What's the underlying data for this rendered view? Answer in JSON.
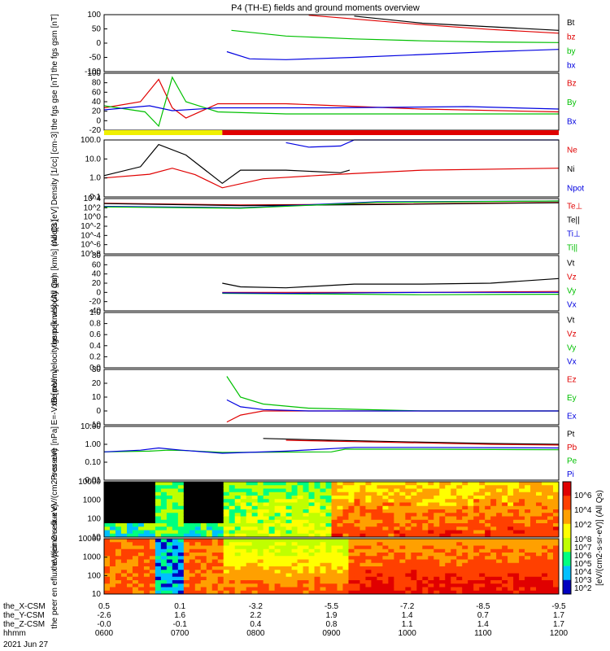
{
  "title": "P4 (TH-E) fields and ground moments overview",
  "colors": {
    "black": "#000000",
    "red": "#e00000",
    "green": "#00c000",
    "blue": "#0000e0",
    "yellow": "#f0f000"
  },
  "chart_data": [
    {
      "panel": "fgs_gsm",
      "type": "line",
      "ylabel": "the fgs gsm [nT]",
      "ylim": [
        -100,
        100
      ],
      "yticks": [
        "100",
        "50",
        "0",
        "-50",
        "-100"
      ],
      "legend": [
        "Bt",
        "bz",
        "by",
        "bx"
      ],
      "series": [
        {
          "name": "Bt",
          "x": [
            0,
            0.35,
            0.44,
            0.55,
            0.7,
            1.0
          ],
          "values": [
            null,
            null,
            null,
            95,
            70,
            45
          ]
        },
        {
          "name": "bz",
          "x": [
            0.35,
            0.45,
            0.55,
            0.7,
            0.85,
            1.0
          ],
          "values": [
            null,
            98,
            85,
            65,
            48,
            35
          ]
        },
        {
          "name": "by",
          "x": [
            0.28,
            0.4,
            0.55,
            0.7,
            0.85,
            1.0
          ],
          "values": [
            45,
            25,
            15,
            8,
            4,
            2
          ]
        },
        {
          "name": "bx",
          "x": [
            0.27,
            0.32,
            0.4,
            0.55,
            0.7,
            0.85,
            1.0
          ],
          "values": [
            -30,
            -55,
            -58,
            -50,
            -40,
            -30,
            -22
          ]
        }
      ]
    },
    {
      "panel": "fgs_gse",
      "type": "line",
      "ylabel": "the fgs gse [nT]",
      "ylim": [
        -40,
        100
      ],
      "yticks": [
        "100",
        "80",
        "60",
        "40",
        "20",
        "0",
        "-20"
      ],
      "legend": [
        "Bz",
        "By",
        "Bx"
      ],
      "series": [
        {
          "name": "Bz",
          "x": [
            0,
            0.08,
            0.12,
            0.15,
            0.18,
            0.25,
            0.4,
            0.7,
            1.0
          ],
          "values": [
            15,
            30,
            85,
            15,
            -10,
            25,
            25,
            12,
            5
          ]
        },
        {
          "name": "By",
          "x": [
            0,
            0.09,
            0.12,
            0.15,
            0.18,
            0.25,
            0.4,
            0.7,
            1.0
          ],
          "values": [
            20,
            5,
            -30,
            90,
            30,
            5,
            0,
            0,
            0
          ]
        },
        {
          "name": "Bx",
          "x": [
            0,
            0.1,
            0.15,
            0.25,
            0.5,
            0.8,
            1.0
          ],
          "values": [
            10,
            20,
            8,
            15,
            15,
            18,
            12
          ]
        }
      ]
    },
    {
      "panel": "mode_bar",
      "type": "bar",
      "segments": [
        {
          "x": [
            0,
            0.26
          ],
          "color": "#f0f000"
        },
        {
          "x": [
            0.26,
            1.0
          ],
          "color": "#e00000"
        }
      ]
    },
    {
      "panel": "density",
      "type": "line",
      "ylabel": "Density [1/cc] [cm-3]",
      "ylim": [
        0.05,
        300
      ],
      "scale": "log",
      "yticks": [
        "100.0",
        "10.0",
        "1.0",
        "0.1"
      ],
      "legend": [
        "Ne",
        "Ni",
        "Npot"
      ],
      "series": [
        {
          "name": "Ne",
          "x": [
            0,
            0.1,
            0.15,
            0.2,
            0.26,
            0.35,
            0.5,
            0.7,
            1.0
          ],
          "values": [
            0.9,
            1.6,
            4,
            1.5,
            0.2,
            0.8,
            1.5,
            3,
            4
          ]
        },
        {
          "name": "Ni",
          "x": [
            0,
            0.08,
            0.12,
            0.18,
            0.26,
            0.3,
            0.4,
            0.52,
            0.54
          ],
          "values": [
            1.3,
            5,
            150,
            30,
            0.4,
            3,
            3,
            2,
            3
          ]
        },
        {
          "name": "Npot",
          "x": [
            0.4,
            0.45,
            0.52,
            0.55,
            0.7,
            1.0
          ],
          "values": [
            200,
            100,
            120,
            300,
            300,
            300
          ]
        }
      ]
    },
    {
      "panel": "temps",
      "type": "line",
      "ylabel": "moqt3 [eV]",
      "scale": "log",
      "yticks": [
        "10^4",
        "10^2",
        "10^0",
        "10^-2",
        "10^-4",
        "10^-6",
        "10^-8"
      ],
      "legend": [
        "Te⊥",
        "Te||",
        "Ti⊥",
        "Ti||"
      ],
      "series": [
        {
          "name": "Te⊥",
          "x": [
            0,
            0.3,
            0.6,
            1.0
          ],
          "values": [
            1000,
            400,
            600,
            1500
          ]
        },
        {
          "name": "Te||",
          "x": [
            0,
            0.3,
            0.6,
            1.0
          ],
          "values": [
            800,
            300,
            500,
            1200
          ]
        },
        {
          "name": "Ti⊥",
          "x": [
            0,
            0.3,
            0.6,
            1.0
          ],
          "values": [
            200,
            100,
            2000,
            3000
          ]
        },
        {
          "name": "Ti||",
          "x": [
            0,
            0.3,
            0.6,
            1.0
          ],
          "values": [
            150,
            80,
            1500,
            3000
          ]
        }
      ]
    },
    {
      "panel": "peir_velocity",
      "type": "line",
      "ylabel": "the peir velocity gsm [km/s] (All Qs)",
      "ylim": [
        -40,
        80
      ],
      "yticks": [
        "80",
        "60",
        "40",
        "20",
        "0",
        "-20",
        "-40"
      ],
      "legend": [
        "Vt",
        "Vz",
        "Vy",
        "Vx"
      ],
      "series": [
        {
          "name": "Vt",
          "x": [
            0.26,
            0.3,
            0.4,
            0.55,
            0.7,
            0.85,
            1.0
          ],
          "values": [
            20,
            12,
            10,
            18,
            18,
            20,
            30
          ]
        },
        {
          "name": "Vz",
          "x": [
            0.26,
            0.4,
            0.7,
            1.0
          ],
          "values": [
            0,
            0,
            0,
            2
          ]
        },
        {
          "name": "Vy",
          "x": [
            0.26,
            0.4,
            0.7,
            1.0
          ],
          "values": [
            -2,
            -3,
            -5,
            -4
          ]
        },
        {
          "name": "Vx",
          "x": [
            0.26,
            0.4,
            0.7,
            1.0
          ],
          "values": [
            -1,
            -2,
            0,
            0
          ]
        }
      ]
    },
    {
      "panel": "peer_velocity",
      "type": "line",
      "ylabel": "the peer velocity gsm [km/s] (All Qs)",
      "ylim": [
        0,
        1
      ],
      "yticks": [
        "1.0",
        "0.8",
        "0.6",
        "0.4",
        "0.2",
        "0.0"
      ],
      "legend": [
        "Vt",
        "Vz",
        "Vy",
        "Vx"
      ],
      "series": []
    },
    {
      "panel": "efield",
      "type": "line",
      "ylabel": "E=-VxB [mV/m]",
      "ylim": [
        -10,
        30
      ],
      "yticks": [
        "30",
        "20",
        "10",
        "0",
        "-10"
      ],
      "legend": [
        "Ez",
        "Ey",
        "Ex"
      ],
      "series": [
        {
          "name": "Ez",
          "x": [
            0.27,
            0.3,
            0.35,
            0.45,
            0.7,
            1.0
          ],
          "values": [
            -8,
            -3,
            0,
            0,
            0,
            0
          ]
        },
        {
          "name": "Ey",
          "x": [
            0.27,
            0.3,
            0.35,
            0.45,
            0.7,
            1.0
          ],
          "values": [
            25,
            10,
            5,
            2,
            0,
            0
          ]
        },
        {
          "name": "Ex",
          "x": [
            0.27,
            0.3,
            0.35,
            0.45,
            0.7,
            1.0
          ],
          "values": [
            8,
            3,
            1,
            0,
            0,
            0
          ]
        }
      ]
    },
    {
      "panel": "pressure",
      "type": "line",
      "ylabel": "Pressure [nPa]",
      "scale": "log",
      "yticks": [
        "10.00",
        "1.00",
        "0.10",
        "0.01"
      ],
      "legend": [
        "Pt",
        "Pb",
        "Pe",
        "Pi"
      ],
      "series": [
        {
          "name": "Pt",
          "x": [
            0.35,
            0.5,
            0.7,
            0.85,
            1.0
          ],
          "values": [
            20,
            8,
            3,
            1.5,
            1
          ]
        },
        {
          "name": "Pb",
          "x": [
            0.4,
            0.55,
            0.7,
            0.85,
            1.0
          ],
          "values": [
            8,
            4,
            2,
            1,
            0.7
          ]
        },
        {
          "name": "Pe",
          "x": [
            0,
            0.1,
            0.14,
            0.18,
            0.26,
            0.5,
            0.53,
            0.7,
            1.0
          ],
          "values": [
            0.02,
            0.03,
            0.05,
            0.04,
            0.015,
            0.02,
            0.08,
            0.08,
            0.06
          ]
        },
        {
          "name": "Pi",
          "x": [
            0,
            0.08,
            0.12,
            0.17,
            0.26,
            0.4,
            0.55,
            0.7,
            1.0
          ],
          "values": [
            0.02,
            0.05,
            0.15,
            0.05,
            0.01,
            0.03,
            0.2,
            0.2,
            0.15
          ]
        }
      ]
    },
    {
      "panel": "peir_spectrogram",
      "type": "heatmap",
      "ylabel": "the peir en eflux eV/(cm2-s-sr-eV)",
      "yticks": [
        "10000",
        "1000",
        "100",
        "10"
      ]
    },
    {
      "panel": "peer_spectrogram",
      "type": "heatmap",
      "ylabel": "the peer en eflux eV/(cm2-s-sr-eV)",
      "yticks": [
        "10000",
        "1000",
        "100",
        "10"
      ]
    },
    {
      "panel": "colorbar",
      "type": "colorbar",
      "label": "[eV/(cm2-s-sr-eV)] (All Qs)",
      "ticks_upper": [
        "10^6",
        "10^4",
        "10^2"
      ],
      "ticks_lower": [
        "10^8",
        "10^7",
        "10^6",
        "10^5",
        "10^4",
        "10^3",
        "10^2"
      ]
    }
  ],
  "axis": {
    "rows": [
      {
        "label": "the_X-CSM",
        "values": [
          "0.5",
          "0.1",
          "-3.2",
          "-5.5",
          "-7.2",
          "-8.5",
          "-9.5"
        ]
      },
      {
        "label": "the_Y-CSM",
        "values": [
          "-2.6",
          "1.6",
          "2.2",
          "1.9",
          "1.4",
          "0.7",
          "1.7"
        ]
      },
      {
        "label": "the_Z-CSM",
        "values": [
          "-0.0",
          "-0.1",
          "0.4",
          "0.8",
          "1.1",
          "1.4",
          "1.7"
        ]
      },
      {
        "label": "hhmm",
        "values": [
          "0600",
          "0700",
          "0800",
          "0900",
          "1000",
          "1100",
          "1200"
        ]
      }
    ],
    "date": "2021 Jun 27"
  }
}
